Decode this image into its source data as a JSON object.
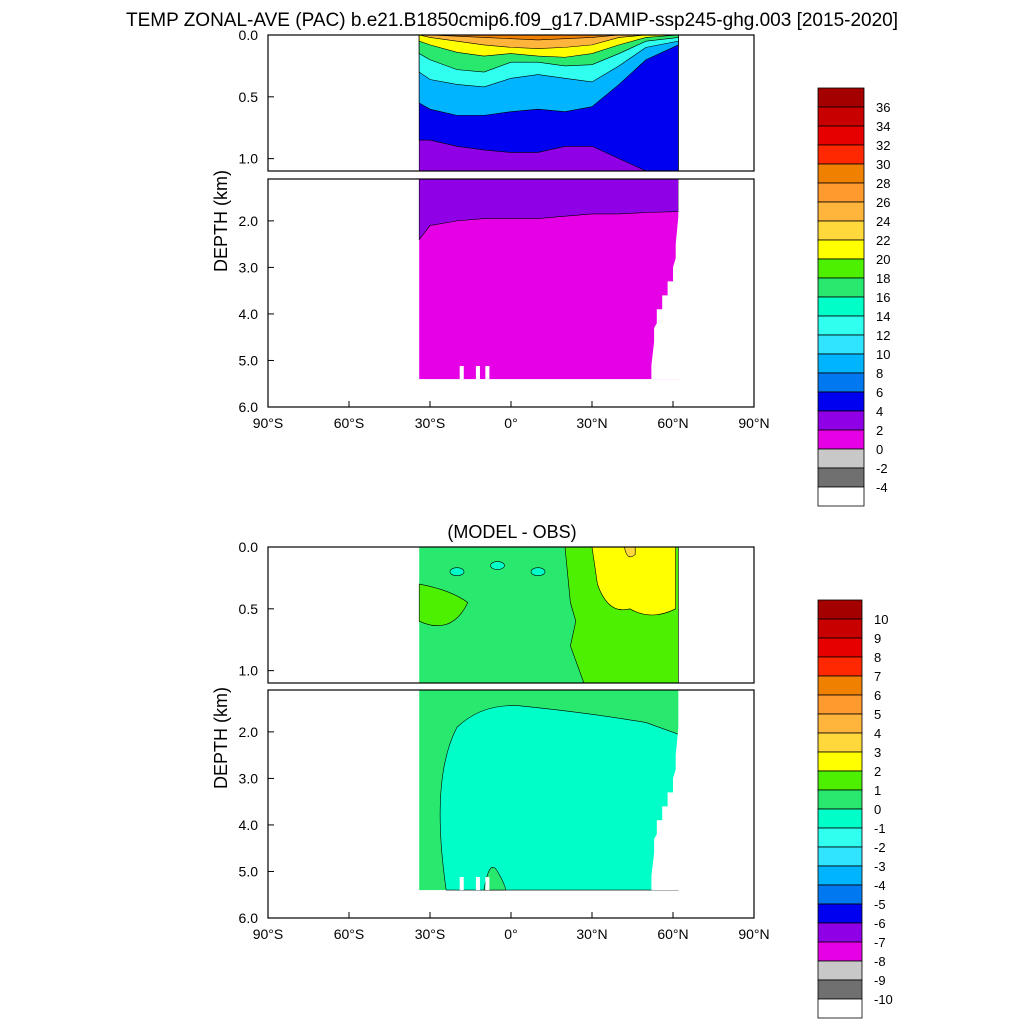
{
  "chart_data": [
    {
      "type": "heatmap",
      "title": "TEMP ZONAL-AVE (PAC) b.e21.B1850cmip6.f09_g17.DAMIP-ssp245-ghg.003 [2015-2020]",
      "ylabel": "DEPTH (km)",
      "x_ticks": [
        "90°S",
        "60°S",
        "30°S",
        "0°",
        "30°N",
        "60°N",
        "90°N"
      ],
      "xlim": [
        -90,
        90
      ],
      "y_ticks_upper": [
        "0.0",
        "0.5",
        "1.0"
      ],
      "y_ticks_lower": [
        "2.0",
        "3.0",
        "4.0",
        "5.0",
        "6.0"
      ],
      "ylim_upper": [
        0,
        1.1
      ],
      "ylim_lower": [
        1.1,
        6.0
      ],
      "colorbar_labels": [
        "36",
        "34",
        "32",
        "30",
        "28",
        "26",
        "24",
        "22",
        "20",
        "18",
        "16",
        "14",
        "12",
        "10",
        "8",
        "6",
        "4",
        "2",
        "0",
        "-2",
        "-4"
      ],
      "colors": [
        "#a50000",
        "#c80000",
        "#e60000",
        "#ff2800",
        "#f08000",
        "#ff9a2e",
        "#ffb43c",
        "#ffd83c",
        "#ffff00",
        "#4cf000",
        "#28e86e",
        "#00ffc8",
        "#30fff0",
        "#30e4ff",
        "#00b4ff",
        "#0078f0",
        "#0000f0",
        "#9000e6",
        "#e600e6",
        "#c8c8c8",
        "#707070",
        "#ffffff"
      ],
      "data_extent_lat": [
        -34,
        62
      ],
      "max_depth_km": 5.4,
      "surface_band_depth_km": 0.2,
      "profile_lat": [
        -34,
        -30,
        -20,
        -10,
        0,
        10,
        20,
        30,
        40,
        50,
        62
      ],
      "isotherm_depths_km": [
        {
          "value": 28,
          "depths": [
            0,
            0,
            0.01,
            0.02,
            0.03,
            0.04,
            0.03,
            0.02,
            0,
            0,
            0
          ]
        },
        {
          "value": 24,
          "depths": [
            0,
            0.02,
            0.05,
            0.08,
            0.1,
            0.11,
            0.1,
            0.08,
            0.02,
            0,
            0
          ]
        },
        {
          "value": 20,
          "depths": [
            0.05,
            0.08,
            0.14,
            0.17,
            0.15,
            0.17,
            0.18,
            0.15,
            0.08,
            0.02,
            0
          ]
        },
        {
          "value": 16,
          "depths": [
            0.15,
            0.2,
            0.28,
            0.3,
            0.22,
            0.22,
            0.25,
            0.24,
            0.15,
            0.05,
            0.02
          ]
        },
        {
          "value": 12,
          "depths": [
            0.3,
            0.36,
            0.4,
            0.42,
            0.35,
            0.32,
            0.35,
            0.38,
            0.25,
            0.1,
            0.05
          ]
        },
        {
          "value": 8,
          "depths": [
            0.55,
            0.6,
            0.65,
            0.65,
            0.62,
            0.6,
            0.62,
            0.58,
            0.4,
            0.2,
            0.08
          ]
        },
        {
          "value": 4,
          "depths": [
            0.85,
            0.85,
            0.9,
            0.93,
            0.95,
            0.95,
            0.9,
            0.9,
            1.0,
            1.1,
            1.1
          ]
        },
        {
          "value": 2,
          "depths": [
            2.4,
            2.1,
            2.0,
            1.95,
            1.95,
            1.95,
            1.9,
            1.85,
            1.85,
            1.82,
            1.8
          ]
        }
      ]
    },
    {
      "type": "heatmap",
      "title": "(MODEL - OBS)",
      "ylabel": "DEPTH (km)",
      "x_ticks": [
        "90°S",
        "60°S",
        "30°S",
        "0°",
        "30°N",
        "60°N",
        "90°N"
      ],
      "xlim": [
        -90,
        90
      ],
      "y_ticks_upper": [
        "0.0",
        "0.5",
        "1.0"
      ],
      "y_ticks_lower": [
        "2.0",
        "3.0",
        "4.0",
        "5.0",
        "6.0"
      ],
      "ylim_upper": [
        0,
        1.1
      ],
      "ylim_lower": [
        1.1,
        6.0
      ],
      "colorbar_labels": [
        "10",
        "9",
        "8",
        "7",
        "6",
        "5",
        "4",
        "3",
        "2",
        "1",
        "0",
        "-1",
        "-2",
        "-3",
        "-4",
        "-5",
        "-6",
        "-7",
        "-8",
        "-9",
        "-10"
      ],
      "colors": [
        "#a50000",
        "#c80000",
        "#e60000",
        "#ff2800",
        "#f08000",
        "#ff9a2e",
        "#ffb43c",
        "#ffd83c",
        "#ffff00",
        "#4cf000",
        "#28e86e",
        "#00ffc8",
        "#30fff0",
        "#30e4ff",
        "#00b4ff",
        "#0078f0",
        "#0000f0",
        "#9000e6",
        "#e600e6",
        "#c8c8c8",
        "#707070",
        "#ffffff"
      ],
      "data_extent_lat": [
        -34,
        62
      ],
      "max_depth_km": 5.4,
      "regions": [
        {
          "value_range": [
            0,
            1
          ],
          "description": "background"
        },
        {
          "value_range": [
            1,
            2
          ],
          "lat_range": [
            20,
            62
          ],
          "depth_range": [
            0,
            1.1
          ]
        },
        {
          "value_range": [
            2,
            3
          ],
          "lat_range": [
            30,
            61
          ],
          "depth_range": [
            0,
            0.55
          ]
        },
        {
          "value_range": [
            -1,
            0
          ],
          "lat_range": [
            -28,
            62
          ],
          "depth_range": [
            1.4,
            5.4
          ]
        }
      ]
    }
  ]
}
